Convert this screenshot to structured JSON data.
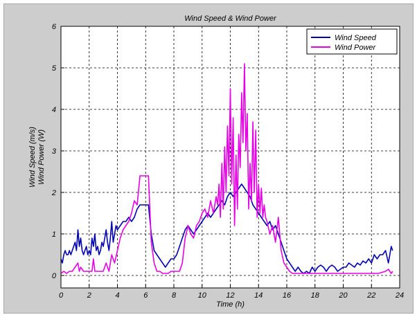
{
  "chart_data": {
    "type": "line",
    "title": "Wind Speed & Wind Power",
    "xlabel": "Time (h)",
    "ylabel": [
      "Wind Speed (m/s)",
      "Wind Power (W)"
    ],
    "xlim": [
      0,
      24
    ],
    "ylim": [
      -0.3,
      6
    ],
    "xticks": [
      0,
      2,
      4,
      6,
      8,
      10,
      12,
      14,
      16,
      18,
      20,
      22,
      24
    ],
    "yticks": [
      0,
      1,
      2,
      3,
      4,
      5,
      6
    ],
    "grid": true,
    "legend_position": "top-right",
    "series": [
      {
        "name": "Wind Speed",
        "color": "#0000b4",
        "x": [
          0,
          0.1,
          0.2,
          0.3,
          0.4,
          0.5,
          0.6,
          0.7,
          0.8,
          0.9,
          1.0,
          1.1,
          1.2,
          1.3,
          1.4,
          1.5,
          1.6,
          1.7,
          1.8,
          1.9,
          2.0,
          2.1,
          2.2,
          2.3,
          2.4,
          2.5,
          2.6,
          2.7,
          2.8,
          2.9,
          3.0,
          3.1,
          3.2,
          3.3,
          3.4,
          3.5,
          3.6,
          3.7,
          3.8,
          3.9,
          4.0,
          4.2,
          4.4,
          4.6,
          4.8,
          5.0,
          5.2,
          5.4,
          5.6,
          5.8,
          6.0,
          6.2,
          6.4,
          6.6,
          6.8,
          7.0,
          7.2,
          7.4,
          7.6,
          7.8,
          8.0,
          8.2,
          8.4,
          8.6,
          8.8,
          9.0,
          9.2,
          9.4,
          9.6,
          9.8,
          10.0,
          10.2,
          10.4,
          10.6,
          10.8,
          11.0,
          11.2,
          11.4,
          11.6,
          11.8,
          12.0,
          12.2,
          12.4,
          12.6,
          12.8,
          13.0,
          13.2,
          13.4,
          13.6,
          13.8,
          14.0,
          14.2,
          14.4,
          14.6,
          14.8,
          15.0,
          15.2,
          15.4,
          15.6,
          15.8,
          16.0,
          16.2,
          16.4,
          16.6,
          16.8,
          17.0,
          17.2,
          17.4,
          17.6,
          17.8,
          18.0,
          18.2,
          18.4,
          18.6,
          18.8,
          19.0,
          19.2,
          19.4,
          19.6,
          19.8,
          20.0,
          20.2,
          20.4,
          20.6,
          20.8,
          21.0,
          21.2,
          21.4,
          21.6,
          21.8,
          22.0,
          22.2,
          22.4,
          22.6,
          22.8,
          23.0,
          23.2,
          23.4,
          23.5
        ],
        "y": [
          0.4,
          0.3,
          0.5,
          0.6,
          0.5,
          0.5,
          0.6,
          0.5,
          0.6,
          0.7,
          0.8,
          0.6,
          1.1,
          0.7,
          0.9,
          0.6,
          0.5,
          0.6,
          0.7,
          0.5,
          0.6,
          0.5,
          0.9,
          0.7,
          1.0,
          0.6,
          0.7,
          0.5,
          0.6,
          0.8,
          0.7,
          0.9,
          1.1,
          0.8,
          0.6,
          0.9,
          1.3,
          0.8,
          1.0,
          1.2,
          1.1,
          1.2,
          1.3,
          1.3,
          1.4,
          1.3,
          1.4,
          1.6,
          1.7,
          1.7,
          1.7,
          1.7,
          1.0,
          0.6,
          0.5,
          0.4,
          0.3,
          0.2,
          0.3,
          0.4,
          0.4,
          0.5,
          0.7,
          0.9,
          1.1,
          1.2,
          1.1,
          1.0,
          1.1,
          1.2,
          1.3,
          1.4,
          1.5,
          1.4,
          1.5,
          1.6,
          1.7,
          1.8,
          1.7,
          1.9,
          2.0,
          1.9,
          2.0,
          2.1,
          2.2,
          2.1,
          2.0,
          1.9,
          1.7,
          1.6,
          1.5,
          1.4,
          1.3,
          1.2,
          1.3,
          1.1,
          1.2,
          1.0,
          0.8,
          0.6,
          0.4,
          0.3,
          0.2,
          0.1,
          0.2,
          0.1,
          0.05,
          0.1,
          0.05,
          0.2,
          0.1,
          0.2,
          0.25,
          0.2,
          0.1,
          0.2,
          0.25,
          0.2,
          0.1,
          0.15,
          0.2,
          0.2,
          0.3,
          0.25,
          0.2,
          0.3,
          0.25,
          0.35,
          0.3,
          0.4,
          0.3,
          0.5,
          0.4,
          0.5,
          0.5,
          0.6,
          0.3,
          0.7,
          0.6
        ]
      },
      {
        "name": "Wind Power",
        "color": "#e600e6",
        "x": [
          0,
          0.2,
          0.4,
          0.6,
          0.8,
          1.0,
          1.2,
          1.3,
          1.4,
          1.6,
          1.8,
          2.0,
          2.2,
          2.3,
          2.4,
          2.6,
          2.8,
          3.0,
          3.2,
          3.4,
          3.6,
          3.8,
          4.0,
          4.2,
          4.4,
          4.6,
          4.8,
          5.0,
          5.2,
          5.4,
          5.6,
          5.8,
          6.0,
          6.2,
          6.4,
          6.6,
          6.8,
          7.0,
          7.2,
          7.4,
          7.6,
          7.8,
          8.0,
          8.2,
          8.4,
          8.6,
          8.8,
          9.0,
          9.2,
          9.4,
          9.6,
          9.8,
          10.0,
          10.2,
          10.4,
          10.6,
          10.8,
          11.0,
          11.1,
          11.2,
          11.3,
          11.4,
          11.5,
          11.6,
          11.7,
          11.8,
          11.9,
          12.0,
          12.1,
          12.2,
          12.3,
          12.4,
          12.5,
          12.6,
          12.7,
          12.8,
          12.9,
          13.0,
          13.1,
          13.2,
          13.3,
          13.4,
          13.5,
          13.6,
          13.7,
          13.8,
          13.9,
          14.0,
          14.1,
          14.2,
          14.3,
          14.4,
          14.5,
          14.6,
          14.8,
          15.0,
          15.2,
          15.4,
          15.6,
          15.8,
          16.0,
          16.2,
          16.4,
          16.6,
          16.8,
          17.0,
          18.0,
          19.0,
          20.0,
          21.0,
          22.0,
          22.5,
          23.0,
          23.2,
          23.4,
          23.5
        ],
        "y": [
          0.05,
          0.1,
          0.05,
          0.1,
          0.1,
          0.2,
          0.3,
          0.1,
          0.2,
          0.1,
          0.1,
          0.1,
          0.1,
          0.4,
          0.1,
          0.1,
          0.1,
          0.1,
          0.3,
          0.1,
          0.5,
          0.3,
          0.6,
          0.9,
          1.1,
          1.2,
          1.3,
          1.5,
          1.8,
          1.7,
          2.4,
          2.4,
          2.4,
          2.4,
          0.8,
          0.3,
          0.1,
          0.1,
          0.05,
          0.05,
          0.05,
          0.1,
          0.1,
          0.1,
          0.1,
          0.3,
          0.9,
          1.2,
          1.0,
          0.9,
          1.2,
          1.3,
          1.5,
          1.6,
          1.4,
          1.8,
          1.5,
          1.9,
          1.7,
          2.2,
          1.4,
          2.7,
          1.6,
          3.1,
          2.0,
          3.6,
          2.4,
          4.5,
          2.2,
          3.8,
          1.2,
          2.9,
          1.6,
          3.4,
          2.6,
          4.4,
          3.2,
          5.1,
          3.0,
          3.9,
          1.6,
          2.7,
          1.8,
          3.7,
          2.0,
          3.5,
          1.4,
          2.2,
          1.5,
          2.1,
          1.4,
          1.7,
          1.4,
          1.3,
          1.0,
          1.2,
          0.8,
          1.4,
          0.6,
          0.3,
          0.2,
          0.1,
          0.05,
          0.05,
          0.05,
          0.05,
          0.05,
          0.05,
          0.05,
          0.05,
          0.05,
          0.05,
          0.1,
          0.15,
          0.05,
          0.1
        ]
      }
    ]
  }
}
